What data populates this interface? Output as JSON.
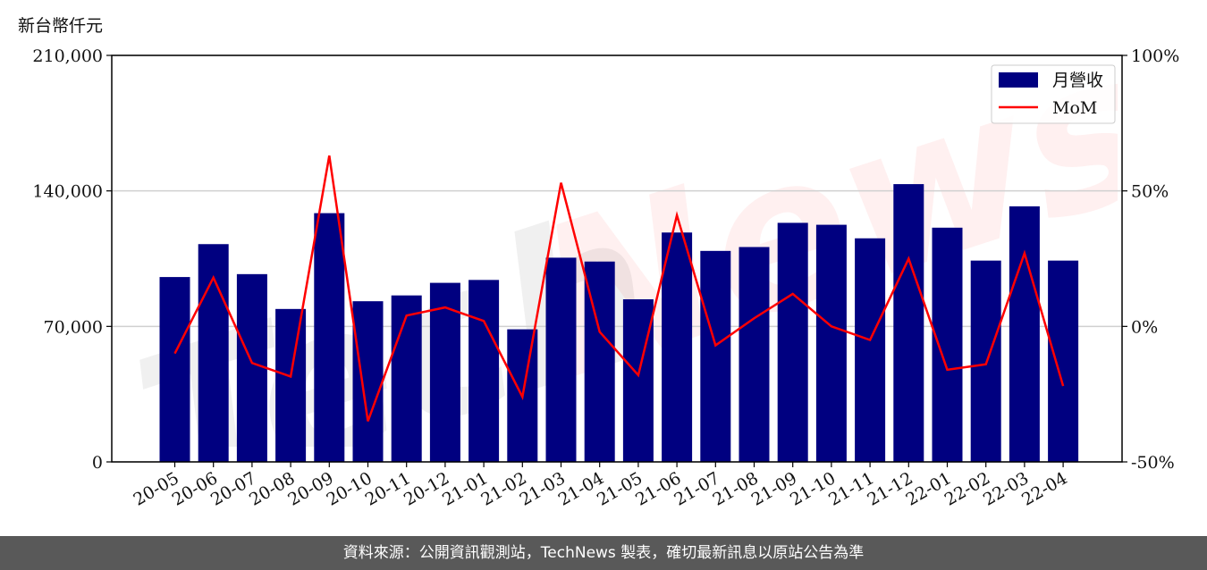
{
  "unit_label": "新台幣仟元",
  "footer": "資料來源：公開資訊觀測站，TechNews 製表，確切最新訊息以原站公告為準",
  "watermark": {
    "tech": "Tech",
    "news": "News"
  },
  "colors": {
    "bar": "#000080",
    "line": "#ff0000",
    "footer_bg": "#595959",
    "grid": "#d0d0d0"
  },
  "chart_data": {
    "type": "bar",
    "categories": [
      "20-05",
      "20-06",
      "20-07",
      "20-08",
      "20-09",
      "20-10",
      "20-11",
      "20-12",
      "21-01",
      "21-02",
      "21-03",
      "21-04",
      "21-05",
      "21-06",
      "21-07",
      "21-08",
      "21-09",
      "21-10",
      "21-11",
      "21-12",
      "22-01",
      "22-02",
      "22-03",
      "22-04"
    ],
    "series": [
      {
        "name": "月營收",
        "type": "bar",
        "axis": "left",
        "values": [
          95500,
          112500,
          97000,
          79000,
          128500,
          83000,
          86000,
          92500,
          94000,
          68500,
          105500,
          103500,
          84000,
          118500,
          109000,
          111000,
          123500,
          122500,
          115500,
          143500,
          121000,
          104000,
          132000,
          104000
        ]
      },
      {
        "name": "MoM",
        "type": "line",
        "axis": "right",
        "values": [
          -10,
          18,
          -13.5,
          -18.5,
          63,
          -35,
          4,
          7,
          2,
          -26,
          53,
          -2,
          -18,
          41,
          -7,
          3,
          12,
          0,
          -5,
          25,
          -16,
          -14,
          27,
          -22
        ]
      }
    ],
    "y_left": {
      "ticks": [
        "0",
        "70,000",
        "140,000",
        "210,000"
      ],
      "tick_values": [
        0,
        70000,
        140000,
        210000
      ],
      "lim": [
        0,
        210000
      ]
    },
    "y_right": {
      "ticks": [
        "-50%",
        "0%",
        "50%",
        "100%"
      ],
      "tick_values": [
        -50,
        0,
        50,
        100
      ],
      "lim": [
        -50,
        100
      ]
    },
    "grid": true,
    "legend": {
      "placement": "top-right",
      "entries": [
        "月營收",
        "MoM"
      ]
    }
  }
}
